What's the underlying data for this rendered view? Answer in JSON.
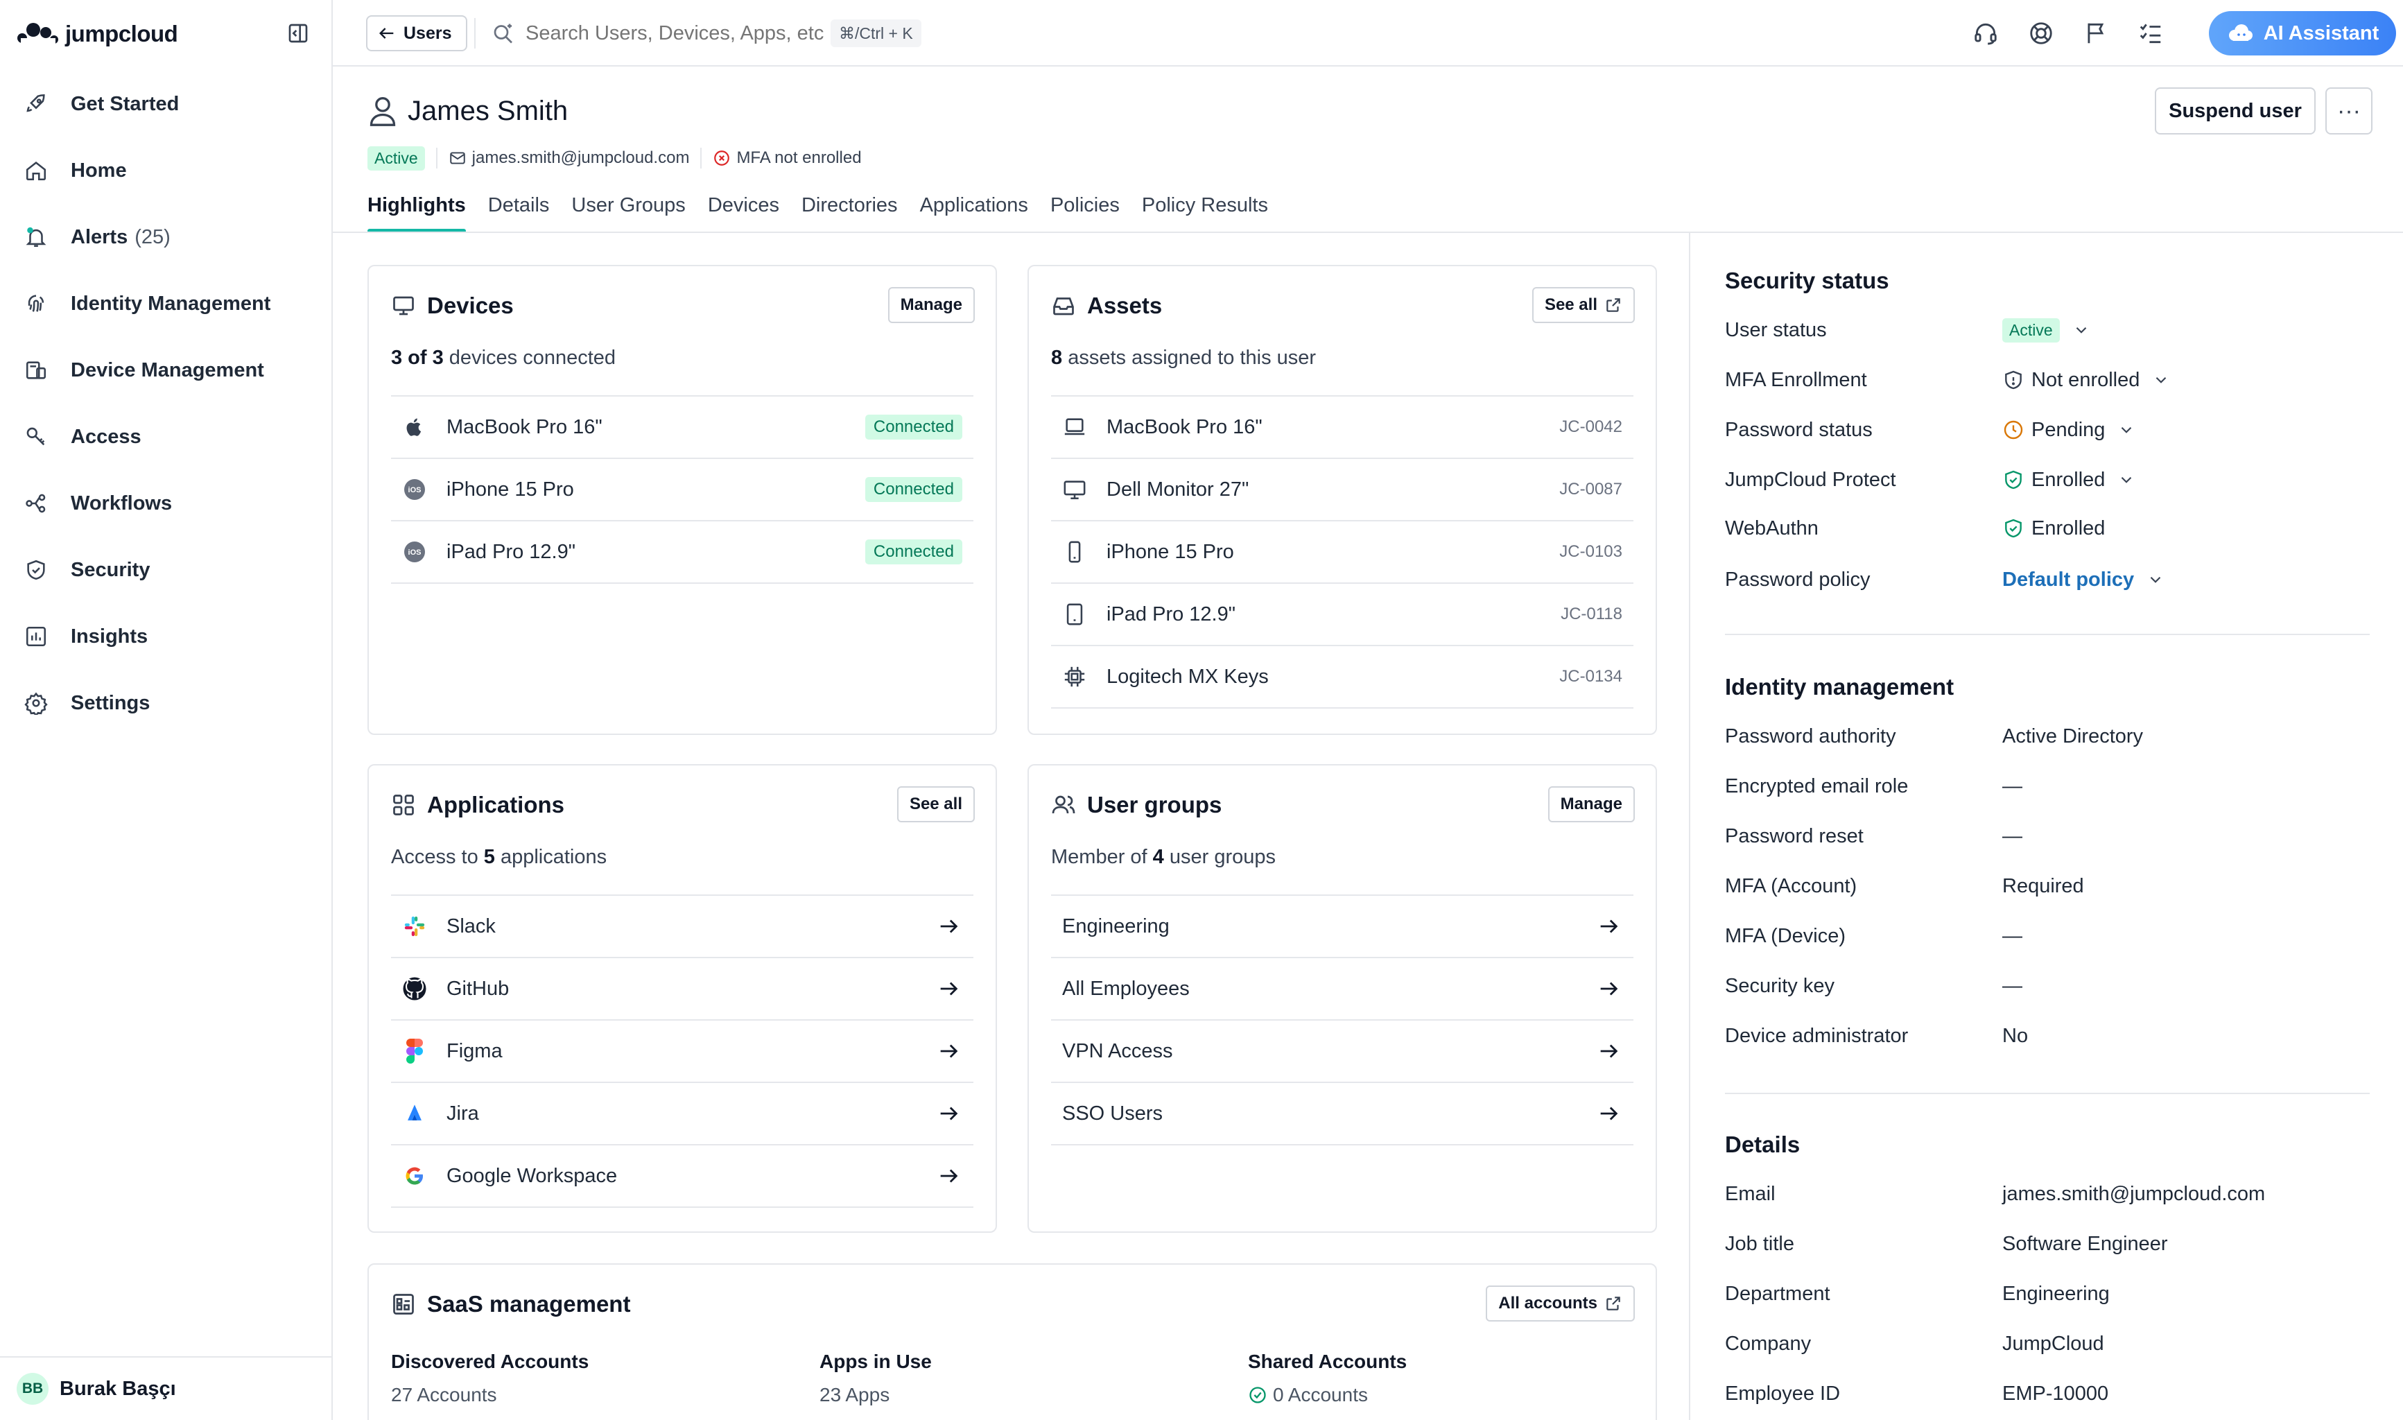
{
  "brand": "jumpcloud",
  "sidebar": {
    "items": [
      {
        "label": "Get Started",
        "icon": "rocket-icon"
      },
      {
        "label": "Home",
        "icon": "home-icon"
      },
      {
        "label": "Alerts",
        "count": "(25)",
        "icon": "bell-icon"
      },
      {
        "label": "Identity Management",
        "icon": "fingerprint-icon"
      },
      {
        "label": "Device Management",
        "icon": "devices-icon"
      },
      {
        "label": "Access",
        "icon": "key-icon"
      },
      {
        "label": "Workflows",
        "icon": "workflow-icon"
      },
      {
        "label": "Security",
        "icon": "shield-icon"
      },
      {
        "label": "Insights",
        "icon": "chart-icon"
      },
      {
        "label": "Settings",
        "icon": "gear-icon"
      }
    ],
    "user": {
      "initials": "BB",
      "name": "Burak Başçı"
    }
  },
  "topbar": {
    "back_label": "Users",
    "search_placeholder": "Search Users, Devices, Apps, etc...",
    "shortcut": "⌘/Ctrl + K",
    "ai_label": "AI Assistant"
  },
  "user": {
    "name": "James Smith",
    "status": "Active",
    "email": "james.smith@jumpcloud.com",
    "mfa": "MFA not enrolled",
    "suspend_label": "Suspend user",
    "more_label": "···"
  },
  "tabs": [
    "Highlights",
    "Details",
    "User Groups",
    "Devices",
    "Directories",
    "Applications",
    "Policies",
    "Policy Results"
  ],
  "devices_card": {
    "title": "Devices",
    "button": "Manage",
    "summary_bold": "3 of 3",
    "summary_rest": " devices connected",
    "items": [
      {
        "name": "MacBook Pro 16\"",
        "status": "Connected"
      },
      {
        "name": "iPhone 15 Pro",
        "status": "Connected"
      },
      {
        "name": "iPad Pro 12.9\"",
        "status": "Connected"
      }
    ]
  },
  "assets_card": {
    "title": "Assets",
    "button": "See all",
    "summary_bold": "8",
    "summary_rest": " assets assigned to this user",
    "items": [
      {
        "name": "MacBook Pro 16\"",
        "id": "JC-0042"
      },
      {
        "name": "Dell Monitor 27\"",
        "id": "JC-0087"
      },
      {
        "name": "iPhone 15 Pro",
        "id": "JC-0103"
      },
      {
        "name": "iPad Pro 12.9\"",
        "id": "JC-0118"
      },
      {
        "name": "Logitech MX Keys",
        "id": "JC-0134"
      }
    ]
  },
  "apps_card": {
    "title": "Applications",
    "button": "See all",
    "summary_pre": "Access to ",
    "summary_bold": "5",
    "summary_rest": " applications",
    "items": [
      "Slack",
      "GitHub",
      "Figma",
      "Jira",
      "Google Workspace"
    ]
  },
  "groups_card": {
    "title": "User groups",
    "button": "Manage",
    "summary_pre": "Member of ",
    "summary_bold": "4",
    "summary_rest": " user groups",
    "items": [
      "Engineering",
      "All Employees",
      "VPN Access",
      "SSO Users"
    ]
  },
  "saas_card": {
    "title": "SaaS management",
    "button": "All accounts",
    "cols": [
      {
        "label": "Discovered Accounts",
        "value": "27 Accounts"
      },
      {
        "label": "Apps in Use",
        "value": "23 Apps"
      },
      {
        "label": "Shared Accounts",
        "value": "0 Accounts"
      }
    ]
  },
  "security_status": {
    "title": "Security status",
    "rows": [
      {
        "label": "User status",
        "value": "Active"
      },
      {
        "label": "MFA Enrollment",
        "value": "Not enrolled"
      },
      {
        "label": "Password status",
        "value": "Pending"
      },
      {
        "label": "JumpCloud Protect",
        "value": "Enrolled"
      },
      {
        "label": "WebAuthn",
        "value": "Enrolled"
      },
      {
        "label": "Password policy",
        "value": "Default policy"
      }
    ]
  },
  "identity_management": {
    "title": "Identity management",
    "rows": [
      {
        "label": "Password authority",
        "value": "Active Directory"
      },
      {
        "label": "Encrypted email role",
        "value": "—"
      },
      {
        "label": "Password reset",
        "value": "—"
      },
      {
        "label": "MFA (Account)",
        "value": "Required"
      },
      {
        "label": "MFA (Device)",
        "value": "—"
      },
      {
        "label": "Security key",
        "value": "—"
      },
      {
        "label": "Device administrator",
        "value": "No"
      }
    ]
  },
  "details": {
    "title": "Details",
    "rows": [
      {
        "label": "Email",
        "value": "james.smith@jumpcloud.com"
      },
      {
        "label": "Job title",
        "value": "Software Engineer"
      },
      {
        "label": "Department",
        "value": "Engineering"
      },
      {
        "label": "Company",
        "value": "JumpCloud"
      },
      {
        "label": "Employee ID",
        "value": "EMP-10000"
      }
    ]
  }
}
